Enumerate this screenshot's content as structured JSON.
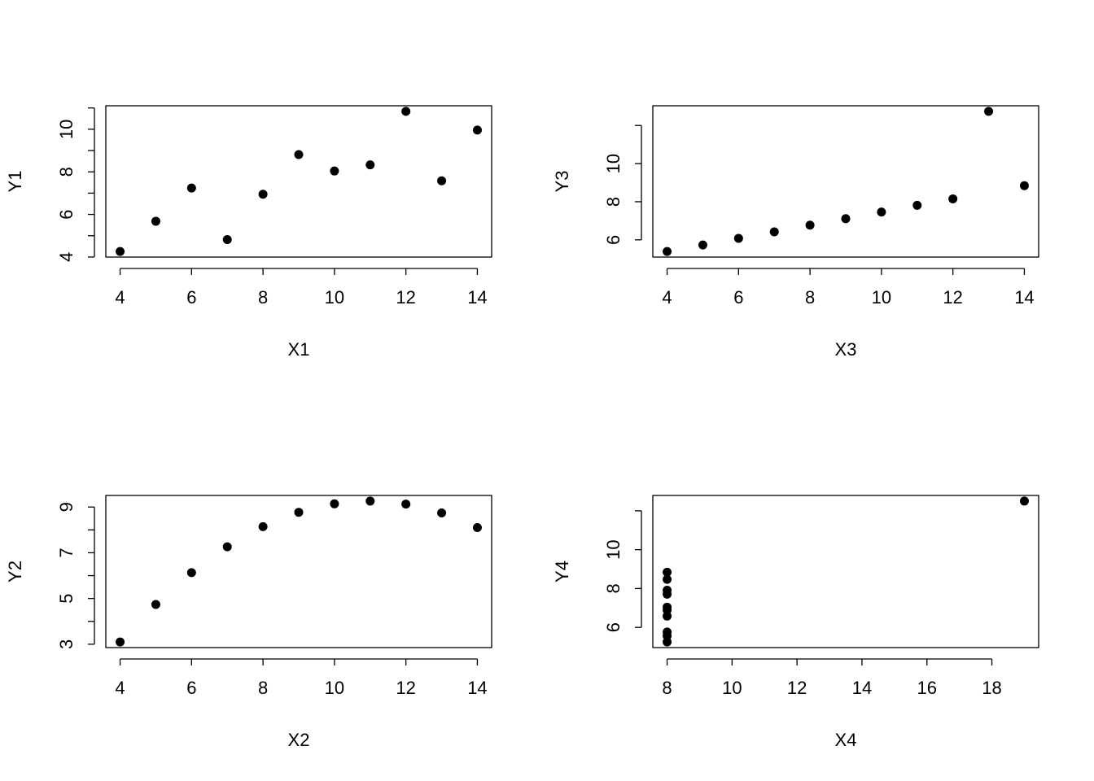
{
  "chart_data": [
    {
      "type": "scatter",
      "xlabel": "X1",
      "ylabel": "Y1",
      "color": "#000000",
      "x": [
        10,
        8,
        13,
        9,
        11,
        14,
        6,
        4,
        12,
        7,
        5
      ],
      "y": [
        8.04,
        6.95,
        7.58,
        8.81,
        8.33,
        9.96,
        7.24,
        4.26,
        10.84,
        4.82,
        5.68
      ],
      "xlim": [
        3.6,
        14.4
      ],
      "ylim": [
        3.9968,
        11.1032
      ],
      "xticks": [
        4,
        6,
        8,
        10,
        12,
        14
      ],
      "yticks": [
        4,
        6,
        8,
        10
      ],
      "yminor": [
        5,
        7,
        9,
        11
      ]
    },
    {
      "type": "scatter",
      "xlabel": "X3",
      "ylabel": "Y3",
      "color": "#000000",
      "x": [
        10,
        8,
        13,
        9,
        11,
        14,
        6,
        4,
        12,
        7,
        5
      ],
      "y": [
        7.46,
        6.77,
        12.74,
        7.11,
        7.81,
        8.84,
        6.08,
        5.39,
        8.15,
        6.42,
        5.73
      ],
      "xlim": [
        3.6,
        14.4
      ],
      "ylim": [
        5.096,
        13.034
      ],
      "xticks": [
        4,
        6,
        8,
        10,
        12,
        14
      ],
      "yticks": [
        6,
        8,
        10
      ],
      "yminor": [
        12
      ]
    },
    {
      "type": "scatter",
      "xlabel": "X2",
      "ylabel": "Y2",
      "color": "#000000",
      "x": [
        10,
        8,
        13,
        9,
        11,
        14,
        6,
        4,
        12,
        7,
        5
      ],
      "y": [
        9.14,
        8.14,
        8.74,
        8.77,
        9.26,
        8.1,
        6.13,
        3.1,
        9.13,
        7.26,
        4.74
      ],
      "xlim": [
        3.6,
        14.4
      ],
      "ylim": [
        2.8536,
        9.5064
      ],
      "xticks": [
        4,
        6,
        8,
        10,
        12,
        14
      ],
      "yticks": [
        3,
        5,
        7,
        9
      ],
      "yminor": [
        4,
        6,
        8
      ]
    },
    {
      "type": "scatter",
      "xlabel": "X4",
      "ylabel": "Y4",
      "color": "#000000",
      "x": [
        8,
        8,
        8,
        8,
        8,
        8,
        8,
        19,
        8,
        8,
        8
      ],
      "y": [
        6.58,
        5.76,
        7.71,
        8.84,
        8.47,
        7.04,
        5.25,
        12.5,
        5.56,
        7.91,
        6.89
      ],
      "xlim": [
        7.56,
        19.44
      ],
      "ylim": [
        4.96,
        12.79
      ],
      "xticks": [
        8,
        10,
        12,
        14,
        16,
        18
      ],
      "yticks": [
        6,
        8,
        10
      ],
      "yminor": [
        12
      ]
    }
  ]
}
